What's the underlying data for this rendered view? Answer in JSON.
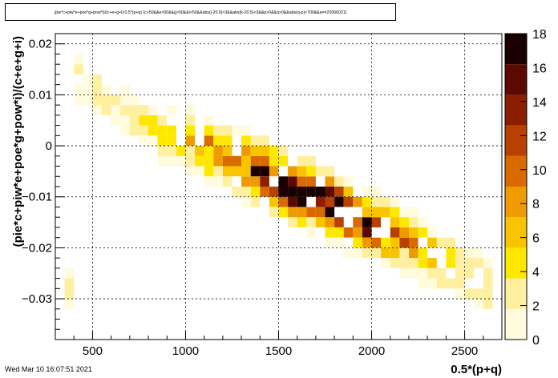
{
  "chart_data": {
    "type": "heatmap",
    "title": "(pie*c+piw*e+poe*g+pow*i)/(c+e+g+i):0.5*(p+q) {c>50&&e>50&&g>50&&i>50&&abs(j-20.5)<3&&abs(k-20.5)<3&&p>0&&q>0&&abs(q-p)<700&&a==22066021}",
    "xlabel": "0.5*(p+q)",
    "ylabel": "(pie*c+piw*e+poe*g+pow*i)/(c+e+g+i)",
    "xlim": [
      300,
      2700
    ],
    "ylim": [
      -0.038,
      0.022
    ],
    "x_ticks": [
      500,
      1000,
      1500,
      2000,
      2500
    ],
    "x_tick_labels": [
      "500",
      "1000",
      "1500",
      "2000",
      "2500"
    ],
    "y_ticks": [
      0.02,
      0.01,
      0,
      -0.01,
      -0.02,
      -0.03
    ],
    "y_tick_labels": [
      "0.02",
      "0.01",
      "0",
      "−0.01",
      "−0.02",
      "−0.03"
    ],
    "colorbar_ticks": [
      0,
      2,
      4,
      6,
      8,
      10,
      12,
      14,
      16,
      18
    ],
    "colorbar_tick_labels": [
      "0",
      "2",
      "4",
      "6",
      "8",
      "10",
      "12",
      "14",
      "16",
      "18"
    ],
    "z_max": 18,
    "grid": true,
    "colorscale": [
      "#fffbdc",
      "#fff0a0",
      "#ffe800",
      "#f8c400",
      "#ee9a00",
      "#d96a00",
      "#b84000",
      "#8c1e00",
      "#5a0a00",
      "#1a0000"
    ],
    "bins_x_width": 50,
    "bins_y_height": 0.002,
    "trend": [
      [
        400,
        0.014
      ],
      [
        500,
        0.011
      ],
      [
        600,
        0.008
      ],
      [
        700,
        0.006
      ],
      [
        800,
        0.004
      ],
      [
        900,
        0.002
      ],
      [
        1000,
        0.001
      ],
      [
        1100,
        0.0
      ],
      [
        1200,
        -0.002
      ],
      [
        1300,
        -0.004
      ],
      [
        1400,
        -0.005
      ],
      [
        1500,
        -0.007
      ],
      [
        1600,
        -0.009
      ],
      [
        1700,
        -0.01
      ],
      [
        1800,
        -0.012
      ],
      [
        1900,
        -0.014
      ],
      [
        2000,
        -0.016
      ],
      [
        2100,
        -0.017
      ],
      [
        2200,
        -0.019
      ],
      [
        2300,
        -0.021
      ],
      [
        2400,
        -0.023
      ],
      [
        2500,
        -0.025
      ],
      [
        2600,
        -0.027
      ]
    ]
  },
  "footer": {
    "date": "Wed Mar 10 16:07:51 2021"
  }
}
